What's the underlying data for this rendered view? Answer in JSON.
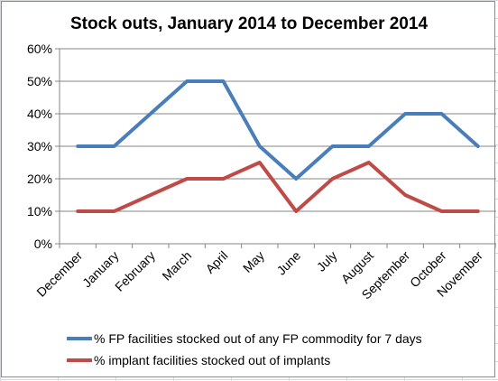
{
  "chart_data": {
    "type": "line",
    "title": "Stock outs, January 2014 to December 2014",
    "categories": [
      "December",
      "January",
      "February",
      "March",
      "April",
      "May",
      "June",
      "July",
      "August",
      "September",
      "October",
      "November"
    ],
    "y_ticks": [
      "0%",
      "10%",
      "20%",
      "30%",
      "40%",
      "50%",
      "60%"
    ],
    "ylim": [
      0,
      0.6
    ],
    "grid": true,
    "legend_position": "bottom",
    "series": [
      {
        "name": "% FP facilities stocked out of any FP commodity for 7 days",
        "color": "#4a7ebb",
        "values": [
          0.3,
          0.3,
          0.4,
          0.5,
          0.5,
          0.3,
          0.2,
          0.3,
          0.3,
          0.4,
          0.4,
          0.3
        ]
      },
      {
        "name": "% implant facilities stocked out of implants",
        "color": "#be4b48",
        "values": [
          0.1,
          0.1,
          0.15,
          0.2,
          0.2,
          0.25,
          0.1,
          0.2,
          0.25,
          0.15,
          0.1,
          0.1
        ]
      }
    ]
  }
}
